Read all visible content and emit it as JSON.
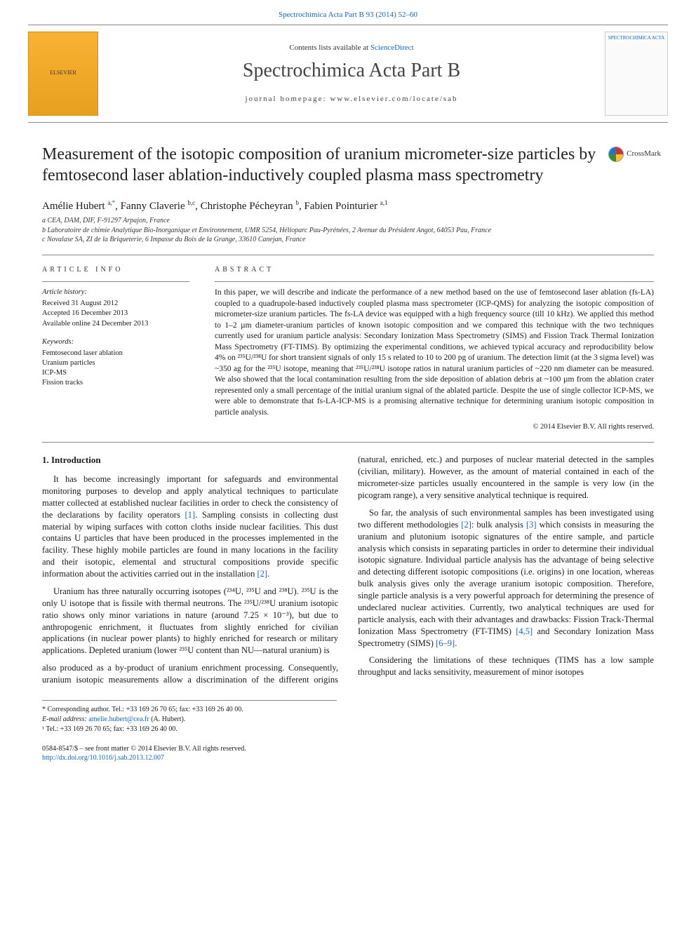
{
  "top_link": {
    "citation": "Spectrochimica Acta Part B 93 (2014) 52–60"
  },
  "banner": {
    "contents_prefix": "Contents lists available at ",
    "contents_link": "ScienceDirect",
    "journal_name": "Spectrochimica Acta Part B",
    "homepage_label": "journal homepage: ",
    "homepage_url": "www.elsevier.com/locate/sab",
    "publisher": "ELSEVIER",
    "cover_label": "SPECTROCHIMICA ACTA"
  },
  "crossmark_label": "CrossMark",
  "title": "Measurement of the isotopic composition of uranium micrometer-size particles by femtosecond laser ablation-inductively coupled plasma mass spectrometry",
  "authors_html": "Amélie Hubert <sup>a,</sup><sup class=\"corr\">*</sup>, Fanny Claverie <sup>b,c</sup>, Christophe Pécheyran <sup>b</sup>, Fabien Pointurier <sup>a,1</sup>",
  "affiliations": [
    "a CEA, DAM, DIF, F-91297 Arpajon, France",
    "b Laboratoire de chimie Analytique Bio-Inorganique et Environnement, UMR 5254, Hélioparc Pau-Pyrénées, 2 Avenue du Président Angot, 64053 Pau, France",
    "c Novalase SA, ZI de la Briqueterie, 6 Impasse du Bois de la Grange, 33610 Canejan, France"
  ],
  "article_info": {
    "heading": "article info",
    "history_label": "Article history:",
    "history": [
      "Received 31 August 2012",
      "Accepted 16 December 2013",
      "Available online 24 December 2013"
    ],
    "keywords_label": "Keywords:",
    "keywords": [
      "Femtosecond laser ablation",
      "Uranium particles",
      "ICP-MS",
      "Fission tracks"
    ]
  },
  "abstract": {
    "heading": "abstract",
    "text": "In this paper, we will describe and indicate the performance of a new method based on the use of femtosecond laser ablation (fs-LA) coupled to a quadrupole-based inductively coupled plasma mass spectrometer (ICP-QMS) for analyzing the isotopic composition of micrometer-size uranium particles. The fs-LA device was equipped with a high frequency source (till 10 kHz). We applied this method to 1–2 µm diameter-uranium particles of known isotopic composition and we compared this technique with the two techniques currently used for uranium particle analysis: Secondary Ionization Mass Spectrometry (SIMS) and Fission Track Thermal Ionization Mass Spectrometry (FT-TIMS). By optimizing the experimental conditions, we achieved typical accuracy and reproducibility below 4% on ²³⁵U/²³⁸U for short transient signals of only 15 s related to 10 to 200 pg of uranium. The detection limit (at the 3 sigma level) was ~350 ag for the ²³⁵U isotope, meaning that ²³⁵U/²³⁸U isotope ratios in natural uranium particles of ~220 nm diameter can be measured. We also showed that the local contamination resulting from the side deposition of ablation debris at ~100 µm from the ablation crater represented only a small percentage of the initial uranium signal of the ablated particle. Despite the use of single collector ICP-MS, we were able to demonstrate that fs-LA-ICP-MS is a promising alternative technique for determining uranium isotopic composition in particle analysis.",
    "copyright": "© 2014 Elsevier B.V. All rights reserved."
  },
  "body": {
    "section_heading": "1. Introduction",
    "p1": "It has become increasingly important for safeguards and environmental monitoring purposes to develop and apply analytical techniques to particulate matter collected at established nuclear facilities in order to check the consistency of the declarations by facility operators ",
    "ref1": "[1]",
    "p1b": ". Sampling consists in collecting dust material by wiping surfaces with cotton cloths inside nuclear facilities. This dust contains U particles that have been produced in the processes implemented in the facility. These highly mobile particles are found in many locations in the facility and their isotopic, elemental and structural compositions provide specific information about the activities carried out in the installation ",
    "ref2": "[2]",
    "p1c": ".",
    "p2": "Uranium has three naturally occurring isotopes (²³⁴U, ²³⁵U and ²³⁸U). ²³⁵U is the only U isotope that is fissile with thermal neutrons. The ²³⁵U/²³⁸U uranium isotopic ratio shows only minor variations in nature (around 7.25 × 10⁻³), but due to anthropogenic enrichment, it fluctuates from slightly enriched for civilian applications (in nuclear power plants) to highly enriched for research or military applications. Depleted uranium (lower ²³⁵U content than NU—natural uranium) is",
    "p3": "also produced as a by-product of uranium enrichment processing. Consequently, uranium isotopic measurements allow a discrimination of the different origins (natural, enriched, etc.) and purposes of nuclear material detected in the samples (civilian, military). However, as the amount of material contained in each of the micrometer-size particles usually encountered in the sample is very low (in the picogram range), a very sensitive analytical technique is required.",
    "p4a": "So far, the analysis of such environmental samples has been investigated using two different methodologies ",
    "ref2b": "[2]",
    "p4b": ": bulk analysis ",
    "ref3": "[3]",
    "p4c": " which consists in measuring the uranium and plutonium isotopic signatures of the entire sample, and particle analysis which consists in separating particles in order to determine their individual isotopic signature. Individual particle analysis has the advantage of being selective and detecting different isotopic compositions (i.e. origins) in one location, whereas bulk analysis gives only the average uranium isotopic composition. Therefore, single particle analysis is a very powerful approach for determining the presence of undeclared nuclear activities. Currently, two analytical techniques are used for particle analysis, each with their advantages and drawbacks: Fission Track-Thermal Ionization Mass Spectrometry (FT-TIMS) ",
    "ref45": "[4,5]",
    "p4d": " and Secondary Ionization Mass Spectrometry (SIMS) ",
    "ref69": "[6–9]",
    "p4e": ".",
    "p5": "Considering the limitations of these techniques (TIMS has a low sample throughput and lacks sensitivity, measurement of minor isotopes"
  },
  "footnotes": {
    "corr": "* Corresponding author. Tel.: +33 169 26 70 65; fax: +33 169 26 40 00.",
    "email_label": "E-mail address: ",
    "email": "amelie.hubert@cea.fr",
    "email_suffix": " (A. Hubert).",
    "note1": "¹ Tel.: +33 169 26 70 65; fax: +33 169 26 40 00."
  },
  "footer": {
    "issn": "0584-8547/$ – see front matter © 2014 Elsevier B.V. All rights reserved.",
    "doi": "http://dx.doi.org/10.1016/j.sab.2013.12.007"
  },
  "colors": {
    "link": "#1565c0",
    "text": "#1a1a1a",
    "rule": "#888888",
    "publisher_bg": "#f9b233"
  }
}
